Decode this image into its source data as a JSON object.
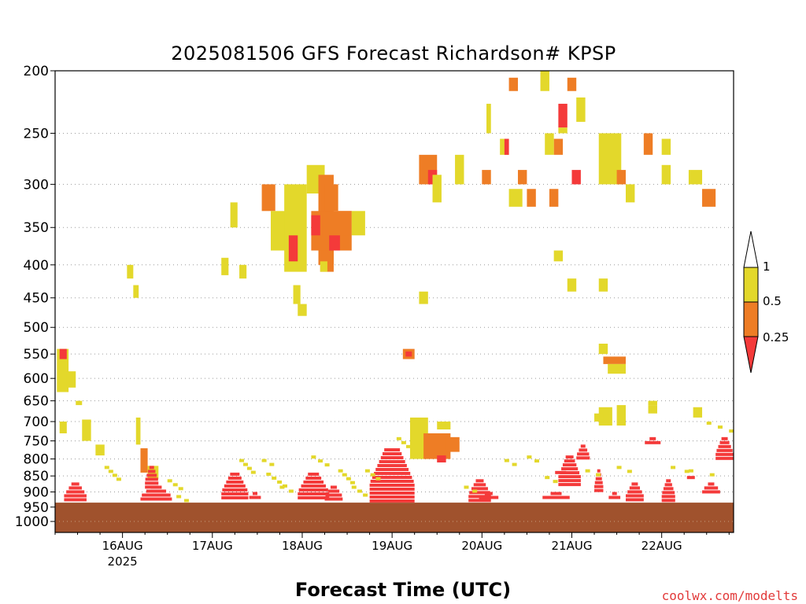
{
  "chart_data": {
    "type": "heatmap",
    "title": "2025081506 GFS Forecast Richardson# KPSP",
    "xlabel": "Forecast Time (UTC)",
    "ylabel": "",
    "credit": "coolwx.com/modelts",
    "x_ticks": [
      {
        "label": "16AUG",
        "sublabel": "2025",
        "day": 16
      },
      {
        "label": "17AUG",
        "sublabel": "",
        "day": 17
      },
      {
        "label": "18AUG",
        "sublabel": "",
        "day": 18
      },
      {
        "label": "19AUG",
        "sublabel": "",
        "day": 19
      },
      {
        "label": "20AUG",
        "sublabel": "",
        "day": 20
      },
      {
        "label": "21AUG",
        "sublabel": "",
        "day": 21
      },
      {
        "label": "22AUG",
        "sublabel": "",
        "day": 22
      }
    ],
    "xlim_days": [
      15.25,
      22.8
    ],
    "y_ticks": [
      200,
      250,
      300,
      350,
      400,
      450,
      500,
      550,
      600,
      650,
      700,
      750,
      800,
      850,
      900,
      950,
      1000
    ],
    "ylim_hpa": [
      200,
      1040
    ],
    "y_scale": "log-pressure",
    "grid": "dotted horizontal",
    "ground_level_hpa": 935,
    "colors": {
      "gt1": "#ffffff",
      "r05_1": "#e3d82b",
      "r025_05": "#ee7d25",
      "lt025": "#f43a3a",
      "ground": "#a0522d"
    },
    "legend": {
      "position": "right",
      "labels": [
        "1",
        "0.5",
        "0.25"
      ]
    },
    "cells": [
      [
        15.27,
        15.4,
        540,
        630,
        "y"
      ],
      [
        15.3,
        15.38,
        540,
        560,
        "r"
      ],
      [
        15.38,
        15.48,
        585,
        620,
        "y"
      ],
      [
        15.48,
        15.55,
        650,
        660,
        "y"
      ],
      [
        15.3,
        15.38,
        700,
        730,
        "y"
      ],
      [
        15.55,
        15.65,
        695,
        750,
        "y"
      ],
      [
        15.7,
        15.8,
        760,
        790,
        "y"
      ],
      [
        16.05,
        16.12,
        400,
        420,
        "y"
      ],
      [
        16.12,
        16.18,
        430,
        450,
        "y"
      ],
      [
        16.15,
        16.2,
        690,
        760,
        "y"
      ],
      [
        16.2,
        16.28,
        770,
        840,
        "o"
      ],
      [
        16.28,
        16.4,
        820,
        860,
        "y"
      ],
      [
        17.1,
        17.18,
        390,
        415,
        "y"
      ],
      [
        17.3,
        17.38,
        400,
        420,
        "y"
      ],
      [
        17.2,
        17.28,
        320,
        350,
        "y"
      ],
      [
        17.55,
        17.7,
        300,
        330,
        "o"
      ],
      [
        17.65,
        17.85,
        330,
        380,
        "y"
      ],
      [
        17.8,
        18.05,
        300,
        410,
        "y"
      ],
      [
        17.85,
        17.95,
        360,
        395,
        "r"
      ],
      [
        17.9,
        17.98,
        430,
        460,
        "y"
      ],
      [
        17.95,
        18.05,
        460,
        480,
        "y"
      ],
      [
        18.05,
        18.25,
        280,
        310,
        "y"
      ],
      [
        18.18,
        18.35,
        290,
        400,
        "o"
      ],
      [
        18.1,
        18.55,
        330,
        380,
        "o"
      ],
      [
        18.25,
        18.4,
        300,
        330,
        "o"
      ],
      [
        18.2,
        18.35,
        380,
        410,
        "o"
      ],
      [
        18.35,
        18.55,
        330,
        360,
        "o"
      ],
      [
        18.3,
        18.42,
        360,
        380,
        "r"
      ],
      [
        18.55,
        18.7,
        330,
        360,
        "y"
      ],
      [
        18.1,
        18.2,
        335,
        360,
        "r"
      ],
      [
        18.2,
        18.28,
        395,
        410,
        "y"
      ],
      [
        19.12,
        19.25,
        540,
        560,
        "o"
      ],
      [
        19.15,
        19.22,
        545,
        555,
        "r"
      ],
      [
        19.3,
        19.4,
        440,
        460,
        "y"
      ],
      [
        19.2,
        19.4,
        690,
        800,
        "y"
      ],
      [
        19.35,
        19.65,
        730,
        800,
        "o"
      ],
      [
        19.5,
        19.6,
        790,
        810,
        "r"
      ],
      [
        19.5,
        19.65,
        700,
        720,
        "y"
      ],
      [
        19.6,
        19.75,
        740,
        780,
        "o"
      ],
      [
        19.3,
        19.5,
        270,
        300,
        "o"
      ],
      [
        19.4,
        19.5,
        285,
        300,
        "r"
      ],
      [
        19.45,
        19.55,
        290,
        320,
        "y"
      ],
      [
        19.7,
        19.8,
        270,
        300,
        "y"
      ],
      [
        20.0,
        20.1,
        285,
        300,
        "o"
      ],
      [
        20.05,
        20.1,
        225,
        250,
        "y"
      ],
      [
        20.2,
        20.3,
        255,
        270,
        "y"
      ],
      [
        20.25,
        20.3,
        255,
        270,
        "r"
      ],
      [
        20.3,
        20.45,
        305,
        325,
        "y"
      ],
      [
        20.4,
        20.5,
        285,
        300,
        "o"
      ],
      [
        20.5,
        20.6,
        305,
        325,
        "o"
      ],
      [
        20.75,
        20.85,
        305,
        325,
        "o"
      ],
      [
        20.8,
        20.9,
        255,
        270,
        "o"
      ],
      [
        20.7,
        20.8,
        250,
        270,
        "y"
      ],
      [
        20.85,
        20.95,
        225,
        245,
        "r"
      ],
      [
        20.85,
        20.95,
        245,
        250,
        "y"
      ],
      [
        20.3,
        20.4,
        205,
        215,
        "o"
      ],
      [
        20.65,
        20.75,
        200,
        215,
        "y"
      ],
      [
        20.95,
        21.05,
        205,
        215,
        "o"
      ],
      [
        21.05,
        21.15,
        220,
        240,
        "y"
      ],
      [
        21.0,
        21.1,
        285,
        300,
        "r"
      ],
      [
        21.3,
        21.55,
        250,
        300,
        "y"
      ],
      [
        21.5,
        21.6,
        285,
        300,
        "o"
      ],
      [
        21.6,
        21.7,
        300,
        320,
        "y"
      ],
      [
        21.8,
        21.9,
        250,
        270,
        "o"
      ],
      [
        22.0,
        22.1,
        255,
        270,
        "y"
      ],
      [
        22.3,
        22.45,
        285,
        300,
        "y"
      ],
      [
        22.45,
        22.6,
        305,
        325,
        "o"
      ],
      [
        22.0,
        22.1,
        280,
        300,
        "y"
      ],
      [
        21.3,
        21.4,
        420,
        440,
        "y"
      ],
      [
        21.3,
        21.4,
        530,
        550,
        "y"
      ],
      [
        21.35,
        21.6,
        555,
        570,
        "o"
      ],
      [
        21.4,
        21.6,
        570,
        590,
        "y"
      ],
      [
        21.3,
        21.45,
        665,
        710,
        "y"
      ],
      [
        21.5,
        21.6,
        660,
        710,
        "y"
      ],
      [
        21.85,
        21.95,
        650,
        660,
        "y"
      ],
      [
        21.85,
        21.95,
        660,
        680,
        "y"
      ],
      [
        20.8,
        20.9,
        380,
        395,
        "y"
      ],
      [
        20.95,
        21.05,
        420,
        440,
        "y"
      ],
      [
        22.35,
        22.45,
        665,
        690,
        "y"
      ],
      [
        21.25,
        21.35,
        680,
        700,
        "y"
      ]
    ],
    "lower_bands": [
      [
        15.35,
        15.6,
        870,
        925
      ],
      [
        16.25,
        16.4,
        820,
        880
      ],
      [
        16.2,
        16.55,
        880,
        925
      ],
      [
        17.1,
        17.4,
        840,
        925
      ],
      [
        17.4,
        17.55,
        900,
        925
      ],
      [
        17.95,
        18.3,
        840,
        925
      ],
      [
        18.25,
        18.45,
        880,
        925
      ],
      [
        18.75,
        19.25,
        770,
        925
      ],
      [
        19.85,
        20.1,
        860,
        925
      ],
      [
        19.95,
        20.2,
        900,
        925
      ],
      [
        20.65,
        21.0,
        900,
        925
      ],
      [
        20.85,
        21.1,
        790,
        880
      ],
      [
        21.25,
        21.35,
        830,
        900
      ],
      [
        21.4,
        21.55,
        900,
        925
      ],
      [
        21.6,
        21.8,
        870,
        925
      ],
      [
        21.8,
        22.0,
        740,
        760
      ],
      [
        22.0,
        22.15,
        860,
        925
      ],
      [
        22.2,
        22.45,
        850,
        860
      ],
      [
        22.45,
        22.65,
        870,
        900
      ],
      [
        22.6,
        22.8,
        740,
        800
      ],
      [
        20.7,
        21.05,
        835,
        845
      ],
      [
        21.05,
        21.2,
        760,
        800
      ]
    ],
    "lower_yellow": [
      [
        15.8,
        15.95,
        820,
        860
      ],
      [
        16.5,
        16.65,
        860,
        890
      ],
      [
        16.6,
        16.7,
        910,
        925
      ],
      [
        17.3,
        17.45,
        800,
        840
      ],
      [
        17.55,
        17.7,
        800,
        820
      ],
      [
        17.6,
        17.8,
        840,
        880
      ],
      [
        17.75,
        17.95,
        880,
        905
      ],
      [
        18.1,
        18.3,
        790,
        820
      ],
      [
        18.4,
        18.55,
        830,
        870
      ],
      [
        18.55,
        18.7,
        880,
        910
      ],
      [
        18.7,
        18.85,
        830,
        860
      ],
      [
        19.05,
        19.2,
        740,
        770
      ],
      [
        19.8,
        19.95,
        880,
        900
      ],
      [
        20.25,
        20.4,
        800,
        820
      ],
      [
        20.5,
        20.65,
        790,
        810
      ],
      [
        20.7,
        20.85,
        850,
        870
      ],
      [
        21.15,
        21.3,
        830,
        845
      ],
      [
        21.5,
        21.7,
        820,
        840
      ],
      [
        22.1,
        22.3,
        820,
        835
      ],
      [
        22.3,
        22.6,
        830,
        845
      ],
      [
        22.5,
        22.75,
        700,
        720
      ]
    ]
  }
}
